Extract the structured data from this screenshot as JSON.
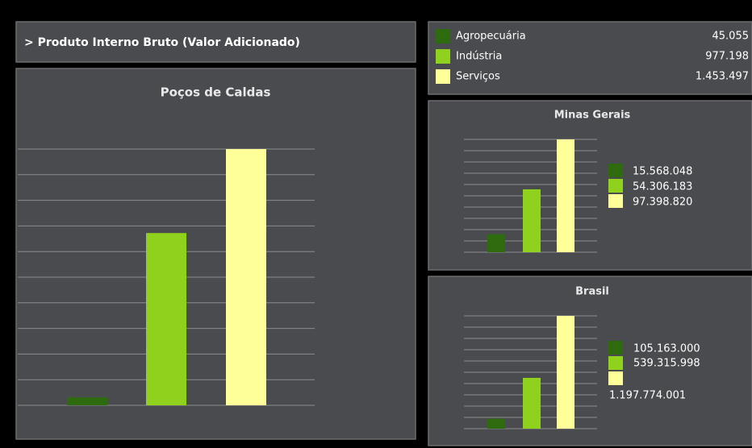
{
  "header": {
    "title": "> Produto Interno Bruto (Valor Adicionado)"
  },
  "chart_data": [
    {
      "type": "bar",
      "title": "Poços de Caldas",
      "categories": [
        "Agropecuária",
        "Indústria",
        "Serviços"
      ],
      "values": [
        45055,
        977198,
        1453497
      ],
      "value_labels": [
        "45.055",
        "977.198",
        "1.453.497"
      ],
      "colors": [
        "#2e6b0f",
        "#8fd11d",
        "#ffff99"
      ],
      "ylim": [
        0,
        1453497
      ],
      "grid": true,
      "grid_lines": 10
    },
    {
      "type": "bar",
      "title": "Minas Gerais",
      "values": [
        15568048,
        54306183,
        97398820
      ],
      "value_labels": [
        "15.568.048",
        "54.306.183",
        "97.398.820"
      ],
      "colors": [
        "#2e6b0f",
        "#8fd11d",
        "#ffff99"
      ],
      "ylim": [
        0,
        97398820
      ],
      "grid": true,
      "grid_lines": 10
    },
    {
      "type": "bar",
      "title": "Brasil",
      "values": [
        105163000,
        539315998,
        1197774001
      ],
      "value_labels": [
        "105.163.000",
        "539.315.998",
        "1.197.774.001"
      ],
      "colors": [
        "#2e6b0f",
        "#8fd11d",
        "#ffff99"
      ],
      "ylim": [
        0,
        1197774001
      ],
      "grid": true,
      "grid_lines": 10
    }
  ]
}
